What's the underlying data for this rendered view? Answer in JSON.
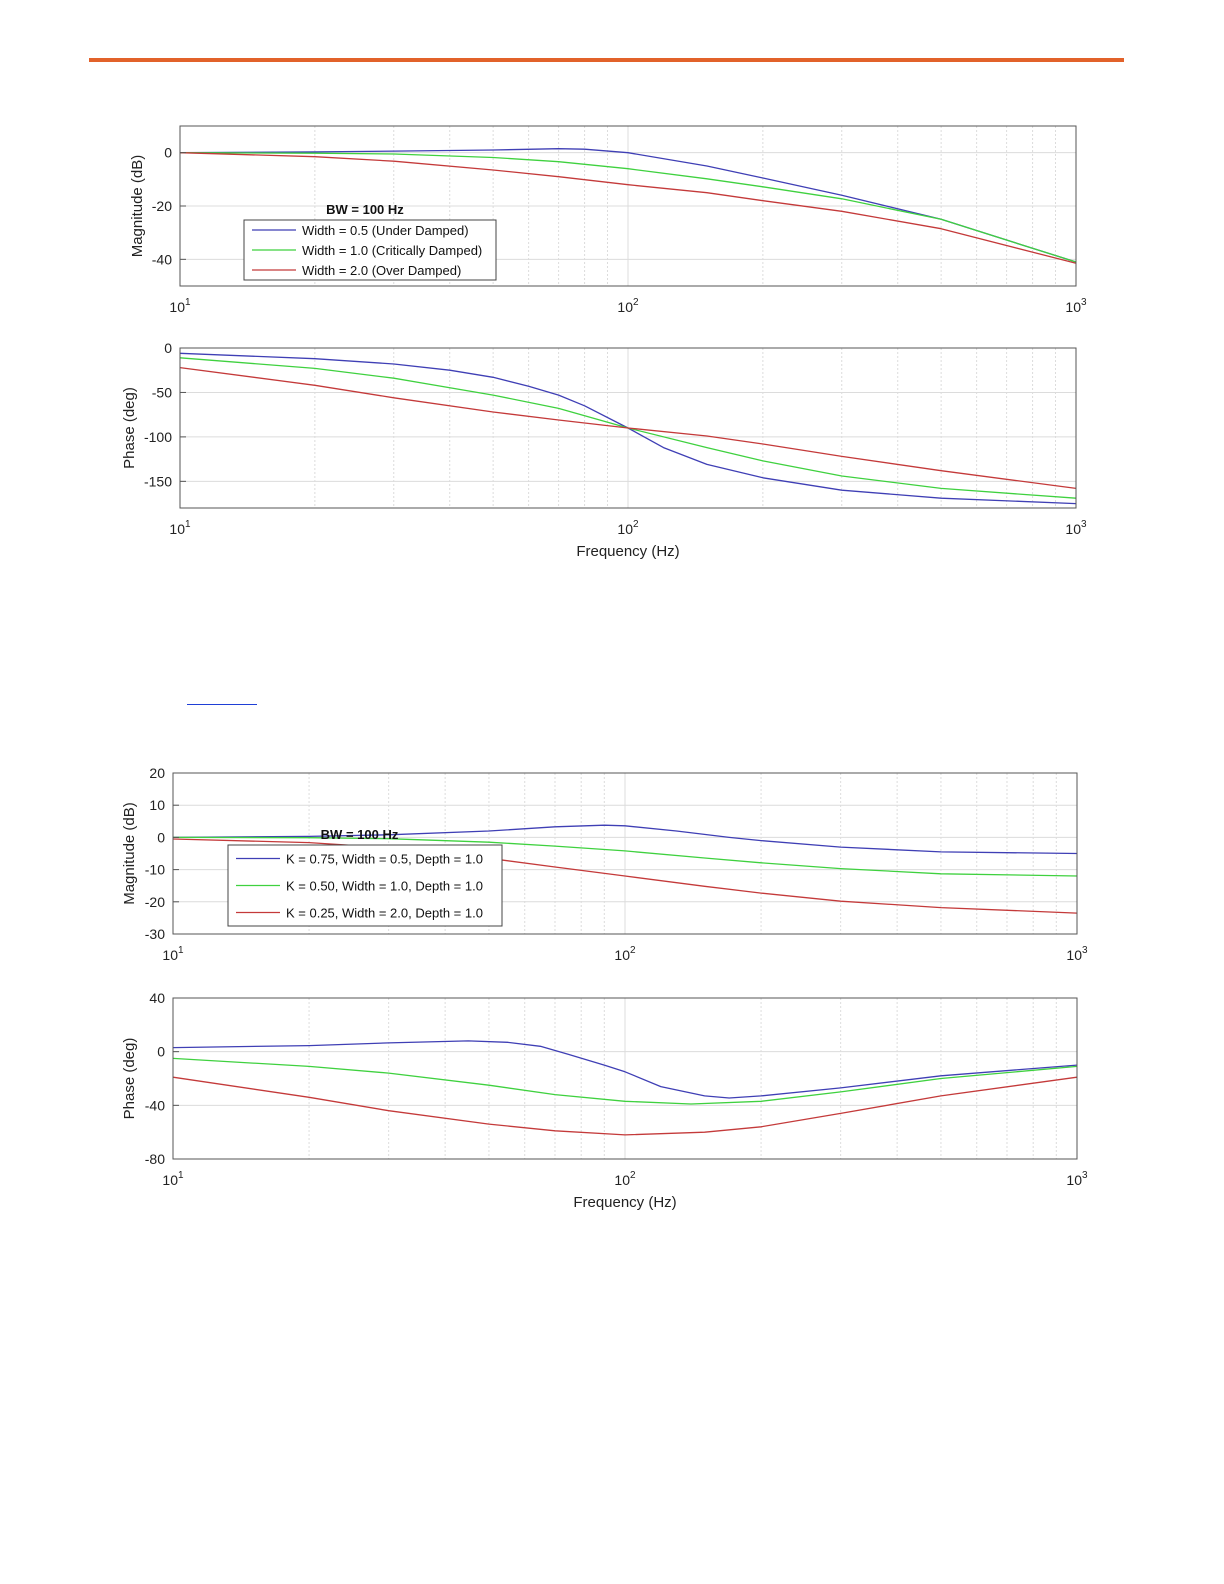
{
  "colors": {
    "rule": "#e2622a",
    "link": "#1f3fd6",
    "blue": "#3f3fb5",
    "green": "#3fd13f",
    "red": "#c43a3a",
    "grid": "#dcdcdc",
    "axis": "#555555"
  },
  "chart_data": [
    {
      "type": "line",
      "xscale": "log",
      "xlim": [
        10,
        1000
      ],
      "xticks": [
        10,
        100,
        1000
      ],
      "xtick_labels": [
        "10",
        "10",
        "10"
      ],
      "xtick_exps": [
        "1",
        "2",
        "3"
      ],
      "xlabel": "",
      "ylabel": "Magnitude (dB)",
      "ylim": [
        -50,
        10
      ],
      "yticks": [
        0,
        -20,
        -40
      ],
      "ytick_labels": [
        "0",
        "-20",
        "-40"
      ],
      "grid": true,
      "legend_title": "BW = 100 Hz",
      "legend_loc": "lower-left",
      "series": [
        {
          "name": "Width = 0.5  (Under Damped)",
          "color": "blue",
          "x": [
            10,
            20,
            30,
            50,
            70,
            80,
            100,
            150,
            200,
            300,
            500,
            1000
          ],
          "y": [
            0,
            0.3,
            0.6,
            1.0,
            1.5,
            1.3,
            0,
            -5,
            -9.5,
            -16,
            -25,
            -41
          ]
        },
        {
          "name": "Width = 1.0  (Critically Damped)",
          "color": "green",
          "x": [
            10,
            20,
            30,
            50,
            70,
            100,
            150,
            200,
            300,
            500,
            1000
          ],
          "y": [
            0,
            -0.2,
            -0.5,
            -1.8,
            -3.4,
            -6,
            -9.8,
            -12.8,
            -17.3,
            -25,
            -41
          ]
        },
        {
          "name": "Width = 2.0  (Over Damped)",
          "color": "red",
          "x": [
            10,
            20,
            30,
            50,
            70,
            100,
            150,
            200,
            300,
            500,
            1000
          ],
          "y": [
            0,
            -1.5,
            -3.2,
            -6.5,
            -9,
            -12,
            -15,
            -18,
            -22,
            -28.5,
            -41.5
          ]
        }
      ]
    },
    {
      "type": "line",
      "xscale": "log",
      "xlim": [
        10,
        1000
      ],
      "xticks": [
        10,
        100,
        1000
      ],
      "xtick_labels": [
        "10",
        "10",
        "10"
      ],
      "xtick_exps": [
        "1",
        "2",
        "3"
      ],
      "xlabel": "Frequency (Hz)",
      "ylabel": "Phase (deg)",
      "ylim": [
        -180,
        0
      ],
      "yticks": [
        0,
        -50,
        -100,
        -150
      ],
      "ytick_labels": [
        "0",
        "-50",
        "-100",
        "-150"
      ],
      "grid": true,
      "series": [
        {
          "name": "",
          "color": "blue",
          "x": [
            10,
            20,
            30,
            40,
            50,
            60,
            70,
            80,
            100,
            120,
            150,
            200,
            300,
            500,
            1000
          ],
          "y": [
            -6,
            -12,
            -18,
            -25,
            -33,
            -43,
            -53,
            -65,
            -90,
            -112,
            -131,
            -146,
            -160,
            -169,
            -175
          ]
        },
        {
          "name": "",
          "color": "green",
          "x": [
            10,
            20,
            30,
            50,
            70,
            100,
            150,
            200,
            300,
            500,
            1000
          ],
          "y": [
            -11,
            -23,
            -34,
            -53,
            -68,
            -90,
            -112,
            -127,
            -144,
            -158,
            -169
          ]
        },
        {
          "name": "",
          "color": "red",
          "x": [
            10,
            20,
            30,
            50,
            70,
            100,
            150,
            200,
            300,
            500,
            1000
          ],
          "y": [
            -22,
            -42,
            -56,
            -72,
            -81,
            -90,
            -99,
            -108,
            -122,
            -138,
            -158
          ]
        }
      ]
    },
    {
      "type": "line",
      "xscale": "log",
      "xlim": [
        10,
        1000
      ],
      "xticks": [
        10,
        100,
        1000
      ],
      "xtick_labels": [
        "10",
        "10",
        "10"
      ],
      "xtick_exps": [
        "1",
        "2",
        "3"
      ],
      "xlabel": "",
      "ylabel": "Magnitude (dB)",
      "ylim": [
        -30,
        20
      ],
      "yticks": [
        20,
        10,
        0,
        -10,
        -20,
        -30
      ],
      "ytick_labels": [
        "20",
        "10",
        "0",
        "-10",
        "-20",
        "-30"
      ],
      "grid": true,
      "legend_title": "BW = 100 Hz",
      "legend_loc": "lower-left",
      "series": [
        {
          "name": "K = 0.75,  Width = 0.5,  Depth = 1.0",
          "color": "blue",
          "x": [
            10,
            20,
            30,
            50,
            70,
            90,
            100,
            130,
            170,
            200,
            300,
            500,
            1000
          ],
          "y": [
            0,
            0.3,
            0.8,
            2,
            3.3,
            3.8,
            3.6,
            2,
            0,
            -1,
            -3,
            -4.5,
            -5
          ]
        },
        {
          "name": "K = 0.50,  Width = 1.0,  Depth = 1.0",
          "color": "green",
          "x": [
            10,
            20,
            30,
            50,
            70,
            100,
            150,
            200,
            300,
            500,
            1000
          ],
          "y": [
            0,
            -0.1,
            -0.4,
            -1.5,
            -2.7,
            -4.2,
            -6.4,
            -7.9,
            -9.7,
            -11.3,
            -12
          ]
        },
        {
          "name": "K = 0.25,  Width = 2.0,  Depth = 1.0",
          "color": "red",
          "x": [
            10,
            20,
            30,
            50,
            70,
            100,
            150,
            200,
            300,
            500,
            1000
          ],
          "y": [
            -0.5,
            -1.6,
            -3.2,
            -6.5,
            -9.2,
            -12,
            -15.2,
            -17.3,
            -19.8,
            -21.8,
            -23.5
          ]
        }
      ]
    },
    {
      "type": "line",
      "xscale": "log",
      "xlim": [
        10,
        1000
      ],
      "xticks": [
        10,
        100,
        1000
      ],
      "xtick_labels": [
        "10",
        "10",
        "10"
      ],
      "xtick_exps": [
        "1",
        "2",
        "3"
      ],
      "xlabel": "Frequency (Hz)",
      "ylabel": "Phase (deg)",
      "ylim": [
        -80,
        40
      ],
      "yticks": [
        40,
        0,
        -40,
        -80
      ],
      "ytick_labels": [
        "40",
        "0",
        "-40",
        "-80"
      ],
      "grid": true,
      "series": [
        {
          "name": "",
          "color": "blue",
          "x": [
            10,
            20,
            30,
            45,
            55,
            65,
            75,
            90,
            100,
            120,
            150,
            170,
            200,
            300,
            500,
            1000
          ],
          "y": [
            3,
            4.5,
            6.5,
            8,
            7,
            4,
            -2,
            -10,
            -15,
            -26,
            -33,
            -34.5,
            -33,
            -27,
            -18,
            -10
          ]
        },
        {
          "name": "",
          "color": "green",
          "x": [
            10,
            20,
            30,
            50,
            70,
            100,
            140,
            200,
            300,
            500,
            1000
          ],
          "y": [
            -5,
            -11,
            -16,
            -25,
            -32,
            -37,
            -39,
            -37,
            -30,
            -20,
            -11
          ]
        },
        {
          "name": "",
          "color": "red",
          "x": [
            10,
            20,
            30,
            50,
            70,
            100,
            150,
            200,
            300,
            500,
            1000
          ],
          "y": [
            -19,
            -34,
            -44,
            -54,
            -59,
            -62,
            -60,
            -56,
            -46,
            -33,
            -19
          ]
        }
      ]
    }
  ]
}
